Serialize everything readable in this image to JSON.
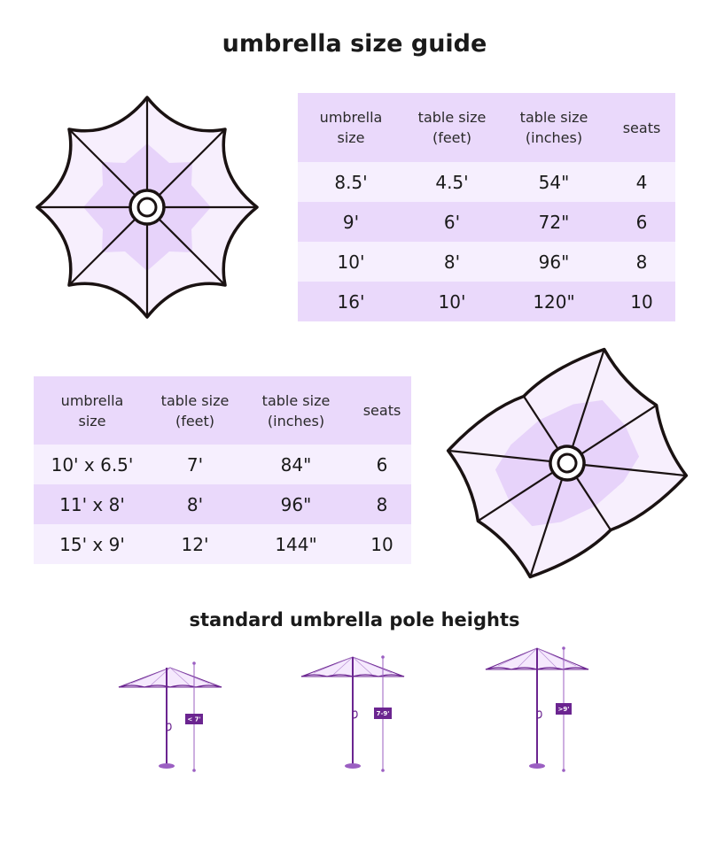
{
  "title": "umbrella size guide",
  "round_table": {
    "headers": [
      {
        "line1": "umbrella",
        "line2": "size"
      },
      {
        "line1": "table size",
        "line2": "(feet)"
      },
      {
        "line1": "table size",
        "line2": "(inches)"
      },
      {
        "line1": "seats",
        "line2": ""
      }
    ],
    "rows": [
      [
        "8.5'",
        "4.5'",
        "54\"",
        "4"
      ],
      [
        "9'",
        "6'",
        "72\"",
        "6"
      ],
      [
        "10'",
        "8'",
        "96\"",
        "8"
      ],
      [
        "16'",
        "10'",
        "120\"",
        "10"
      ]
    ]
  },
  "rect_table": {
    "headers": [
      {
        "line1": "umbrella",
        "line2": "size"
      },
      {
        "line1": "table size",
        "line2": "(feet)"
      },
      {
        "line1": "table size",
        "line2": "(inches)"
      },
      {
        "line1": "seats",
        "line2": ""
      }
    ],
    "rows": [
      [
        "10' x 6.5'",
        "7'",
        "84\"",
        "6"
      ],
      [
        "11' x 8'",
        "8'",
        "96\"",
        "8"
      ],
      [
        "15' x 9'",
        "12'",
        "144\"",
        "10"
      ]
    ]
  },
  "pole_section": {
    "title": "standard umbrella pole heights",
    "labels": [
      "< 7'",
      "7-9'",
      ">9'"
    ]
  },
  "colors": {
    "canopy_light": "#f7effd",
    "canopy_mid": "#e7d3fa",
    "row_light": "#f6effe",
    "row_dark": "#ead9fb",
    "pole_purple": "#6b2590",
    "outline": "#1a1212"
  }
}
